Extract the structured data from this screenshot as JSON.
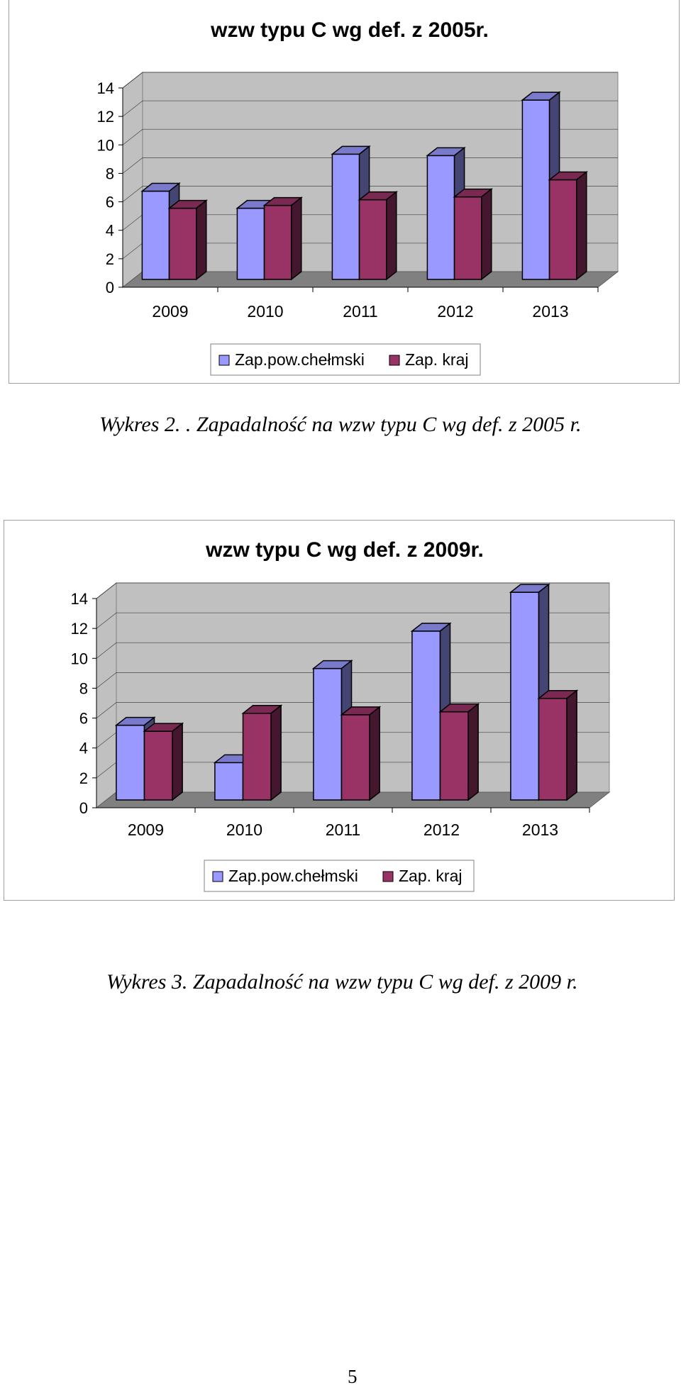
{
  "chart_data": [
    {
      "type": "bar",
      "title": "wzw typu C wg def. z 2005r.",
      "categories": [
        "2009",
        "2010",
        "2011",
        "2012",
        "2013"
      ],
      "series": [
        {
          "name": "Zap.pow.chełmski",
          "values": [
            6.2,
            5.0,
            8.8,
            8.7,
            12.6
          ]
        },
        {
          "name": "Zap. kraj",
          "values": [
            5.0,
            5.2,
            5.6,
            5.8,
            7.0
          ]
        }
      ],
      "ylim": [
        0,
        14
      ],
      "yticks": [
        0,
        2,
        4,
        6,
        8,
        10,
        12,
        14
      ],
      "grid": true,
      "legend": "bottom",
      "colors": {
        "series1": "#9999ff",
        "series2": "#993366"
      }
    },
    {
      "type": "bar",
      "title": "wzw typu C wg def. z 2009r.",
      "categories": [
        "2009",
        "2010",
        "2011",
        "2012",
        "2013"
      ],
      "series": [
        {
          "name": "Zap.pow.chełmski",
          "values": [
            5.0,
            2.5,
            8.8,
            11.3,
            13.9
          ]
        },
        {
          "name": "Zap. kraj",
          "values": [
            4.6,
            5.8,
            5.7,
            5.9,
            6.8
          ]
        }
      ],
      "ylim": [
        0,
        14
      ],
      "yticks": [
        0,
        2,
        4,
        6,
        8,
        10,
        12,
        14
      ],
      "grid": true,
      "legend": "bottom",
      "colors": {
        "series1": "#9999ff",
        "series2": "#993366"
      }
    }
  ],
  "captions": [
    "Wykres 2. . Zapadalność na wzw typu C wg def. z 2005 r.",
    "Wykres 3. Zapadalność na wzw typu C wg def. z 2009 r."
  ],
  "page_number": "5"
}
